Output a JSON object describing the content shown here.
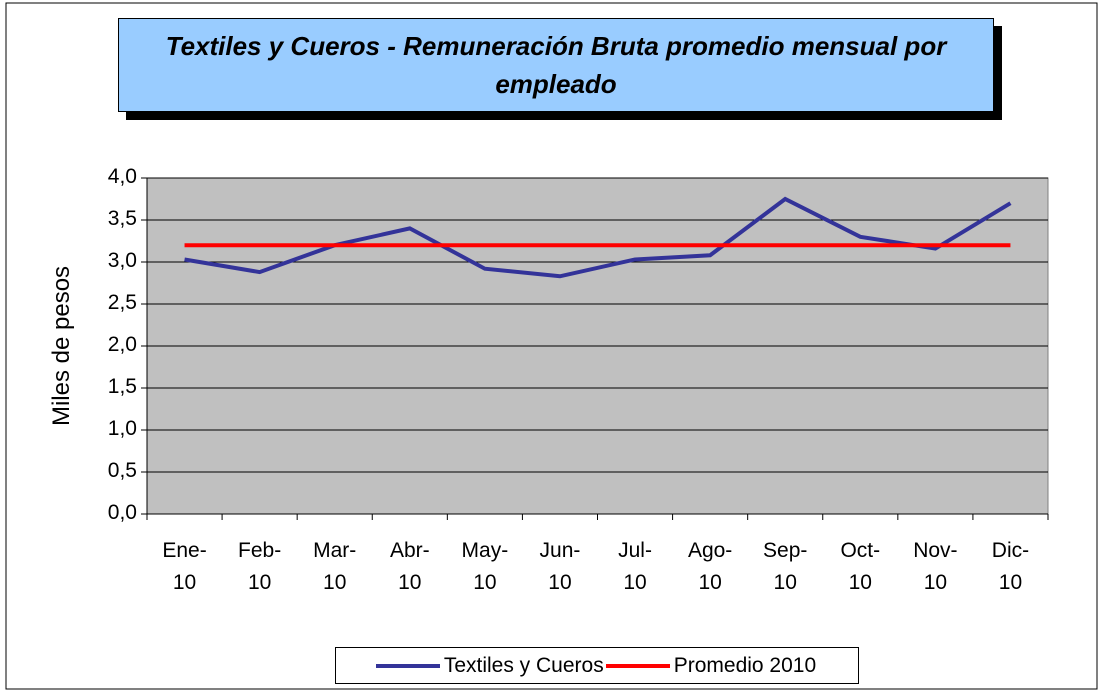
{
  "chart_data": {
    "type": "line",
    "title": "Textiles y Cueros - Remuneración Bruta promedio mensual por empleado",
    "y_label": "Miles de pesos",
    "categories": [
      "Ene-10",
      "Feb-10",
      "Mar-10",
      "Abr-10",
      "May-10",
      "Jun-10",
      "Jul-10",
      "Ago-10",
      "Sep-10",
      "Oct-10",
      "Nov-10",
      "Dic-10"
    ],
    "series": [
      {
        "name": "Textiles y Cueros",
        "color": "#333399",
        "values": [
          3.03,
          2.88,
          3.2,
          3.4,
          2.92,
          2.83,
          3.03,
          3.08,
          3.75,
          3.3,
          3.16,
          3.7
        ]
      },
      {
        "name": "Promedio 2010",
        "color": "#ff0000",
        "values": [
          3.2,
          3.2,
          3.2,
          3.2,
          3.2,
          3.2,
          3.2,
          3.2,
          3.2,
          3.2,
          3.2,
          3.2
        ]
      }
    ],
    "ylim": [
      0,
      4
    ],
    "yticks": [
      {
        "value": 0,
        "label": "0,0"
      },
      {
        "value": 0.5,
        "label": "0,5"
      },
      {
        "value": 1,
        "label": "1,0"
      },
      {
        "value": 1.5,
        "label": "1,5"
      },
      {
        "value": 2,
        "label": "2,0"
      },
      {
        "value": 2.5,
        "label": "2,5"
      },
      {
        "value": 3,
        "label": "3,0"
      },
      {
        "value": 3.5,
        "label": "3,5"
      },
      {
        "value": 4,
        "label": "4,0"
      }
    ],
    "grid": true,
    "legend": "bottom"
  }
}
